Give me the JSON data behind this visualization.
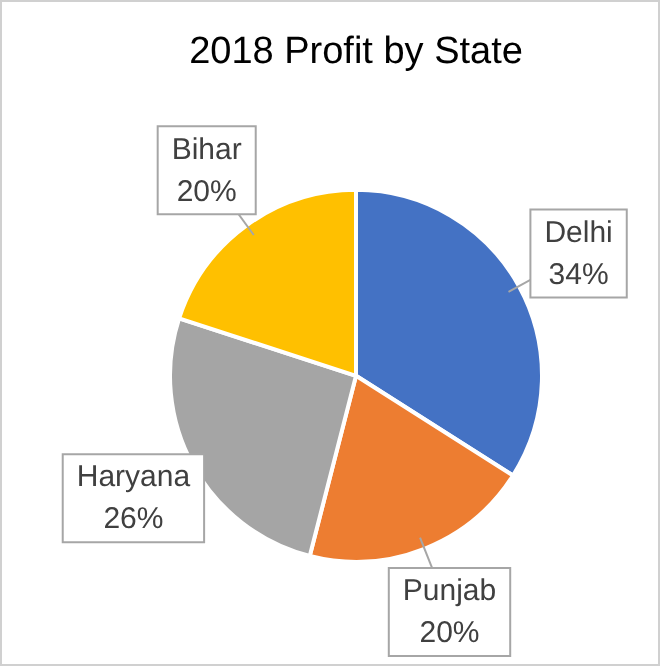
{
  "chart_data": {
    "type": "pie",
    "title": "2018 Profit by State",
    "categories": [
      "Delhi",
      "Punjab",
      "Haryana",
      "Bihar"
    ],
    "values": [
      34,
      20,
      26,
      20
    ],
    "value_labels": [
      "34%",
      "20%",
      "26%",
      "20%"
    ],
    "colors": [
      "#4472c4",
      "#ed7d31",
      "#a5a5a5",
      "#ffc000"
    ],
    "legend": false
  }
}
